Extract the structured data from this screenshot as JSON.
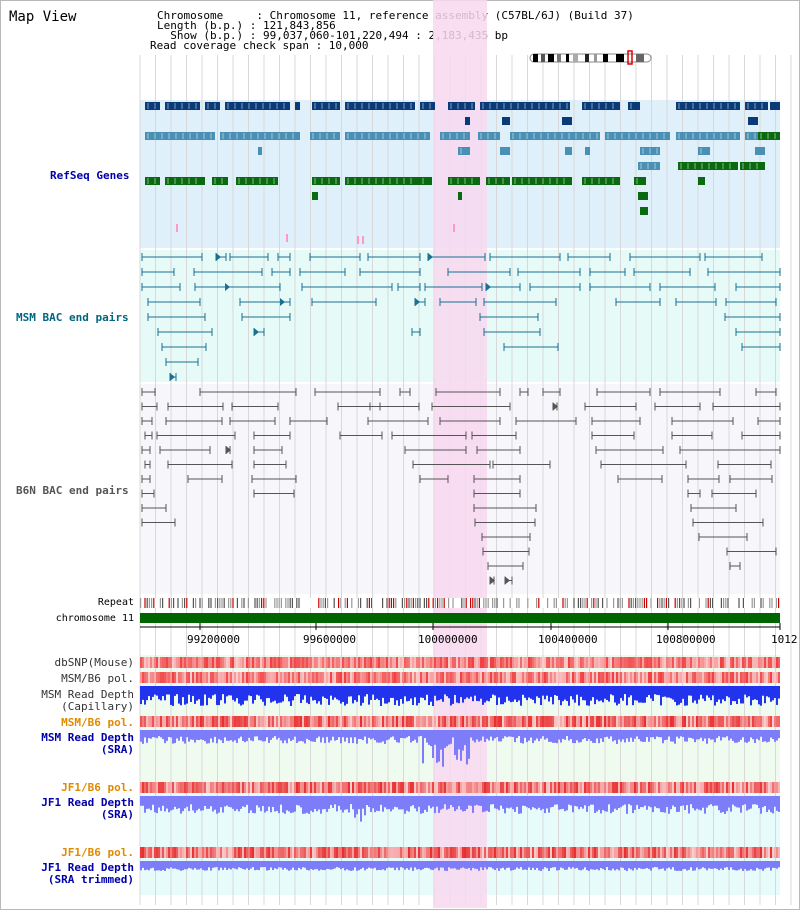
{
  "page": {
    "title": "Map View"
  },
  "info": {
    "chromosome": "Chromosome     : Chromosome 11, reference assembly (C57BL/6J) (Build 37)",
    "length": "Length (b.p.) : 121,843,856",
    "show": "  Show (b.p.) : 99,037,060-101,220,494 : 2,183,435 bp",
    "coverage": "Read coverage check span : 10,000"
  },
  "tracks": {
    "refseq": "RefSeq Genes",
    "msm_bac": "MSM BAC end pairs",
    "b6n_bac": "B6N BAC end pairs",
    "repeat": "Repeat",
    "chromosome": "chromosome 11",
    "dbsnp": "dbSNP(Mouse)",
    "msm_b6_pol_1": "MSM/B6 pol.",
    "msm_depth_cap_1": "MSM Read Depth",
    "msm_depth_cap_2": "(Capillary)",
    "msm_b6_pol_2": "MSM/B6 pol.",
    "msm_depth_sra_1": "MSM Read Depth",
    "msm_depth_sra_2": "(SRA)",
    "jf1_b6_pol_1": "JF1/B6 pol.",
    "jf1_depth_sra_1": "JF1 Read Depth",
    "jf1_depth_sra_2": "(SRA)",
    "jf1_b6_pol_2": "JF1/B6 pol.",
    "jf1_depth_trim_1": "JF1 Read Depth",
    "jf1_depth_trim_2": "(SRA trimmed)"
  },
  "axis": {
    "ticks": [
      "99200000",
      "99600000",
      "100000000",
      "100400000",
      "100800000",
      "1012"
    ]
  },
  "colors": {
    "refseq_bg": "#dff0fa",
    "msm_bac_bg": "#e6fbf8",
    "b6n_bac_bg": "#f7f7fb",
    "highlight": "#f8d8f0",
    "refseq_dark": "#0a3a78",
    "refseq_mid": "#4a8fb4",
    "refseq_green": "#0a6a10",
    "msm_bac_line": "#1a6f92",
    "b6n_line": "#555555",
    "chromosome": "#006400",
    "depth_blue": "#2233ee",
    "depth_light": "#7d7dfa",
    "label_blue": "#0000aa",
    "label_orange": "#e08a00",
    "label_teal": "#006680"
  }
}
